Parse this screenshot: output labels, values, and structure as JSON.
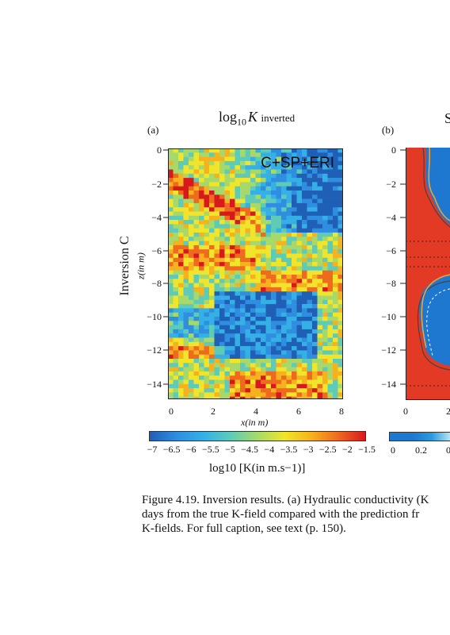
{
  "panel_a": {
    "title_main": "log",
    "title_sub": "10",
    "title_var": "K",
    "title_suffix": "inverted",
    "letter": "(a)",
    "overlay_label": "C+SP+ERI",
    "row_label": "Inversion C",
    "y_label": "z(in m)",
    "x_label": "x(in m)",
    "y_ticks": [
      "0",
      "−2",
      "−4",
      "−6",
      "−8",
      "−10",
      "−12",
      "−14"
    ],
    "x_ticks": [
      "0",
      "2",
      "4",
      "6",
      "8"
    ],
    "colorbar_ticks": [
      "−7",
      "−6.5",
      "−6",
      "−5.5",
      "−5",
      "−4.5",
      "−4",
      "−3.5",
      "−3",
      "−2.5",
      "−2",
      "−1.5"
    ],
    "colorbar_label": "log10 [K(in m.s−1)]",
    "colorbar_colors": [
      "#1f5fb5",
      "#2f8ee0",
      "#34b0e6",
      "#5ecbb9",
      "#a6d96a",
      "#f0e52a",
      "#f6b21e",
      "#ef6a1f",
      "#d7191c"
    ]
  },
  "panel_b": {
    "title": "S",
    "letter": "(b)",
    "y_ticks": [
      "0",
      "−2",
      "−4",
      "−6",
      "−8",
      "−10",
      "−12",
      "−14"
    ],
    "x_ticks": [
      "0",
      "2"
    ],
    "colorbar_ticks": [
      "0",
      "0.2",
      "0"
    ],
    "colors": {
      "red": "#e23a25",
      "blue": "#1e78cf",
      "light": "#b8e3f3"
    }
  },
  "caption": {
    "line1": "Figure 4.19. Inversion results. (a) Hydraulic conductivity (K",
    "line2": "days from the true K-field compared with the prediction fr",
    "line3": "K-fields. For full caption, see text (p. 150)."
  }
}
